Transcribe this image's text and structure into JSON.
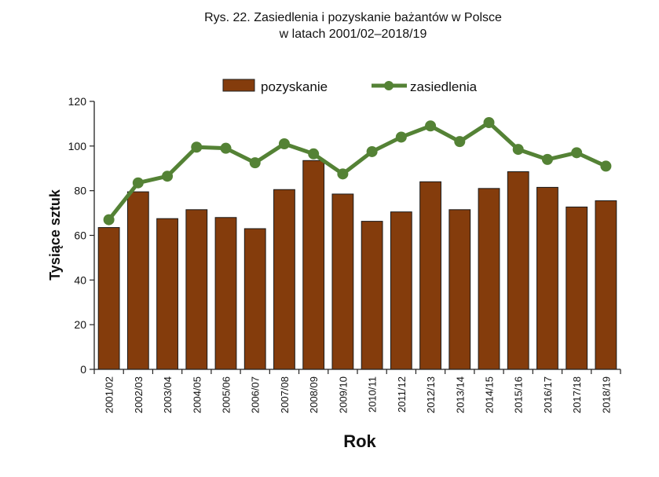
{
  "chart_data": {
    "type": "bar+line",
    "title": "Rys. 22. Zasiedlenia i pozyskanie bażantów w Polsce",
    "subtitle": "w latach 2001/02–2018/19",
    "xlabel": "Rok",
    "ylabel": "Tysiące sztuk",
    "ylim": [
      0,
      120
    ],
    "yticks": [
      0,
      20,
      40,
      60,
      80,
      100,
      120
    ],
    "grid": false,
    "legend_position": "top",
    "categories": [
      "2001/02",
      "2002/03",
      "2003/04",
      "2004/05",
      "2005/06",
      "2006/07",
      "2007/08",
      "2008/09",
      "2009/10",
      "2010/11",
      "2011/12",
      "2012/13",
      "2013/14",
      "2014/15",
      "2015/16",
      "2016/17",
      "2017/18",
      "2018/19"
    ],
    "series": [
      {
        "name": "pozyskanie",
        "type": "bar",
        "color": "#843C0C",
        "values": [
          63.5,
          79.5,
          67.5,
          71.5,
          68,
          63,
          80.5,
          93.5,
          78.5,
          66.3,
          70.5,
          84,
          71.5,
          81,
          88.5,
          81.5,
          72.7,
          75.5
        ]
      },
      {
        "name": "zasiedlenia",
        "type": "line",
        "color": "#548235",
        "values": [
          67,
          83.5,
          86.5,
          99.5,
          99,
          92.5,
          101,
          96.5,
          87.5,
          97.5,
          104,
          109,
          102,
          110.5,
          98.5,
          94,
          97,
          91
        ]
      }
    ]
  }
}
